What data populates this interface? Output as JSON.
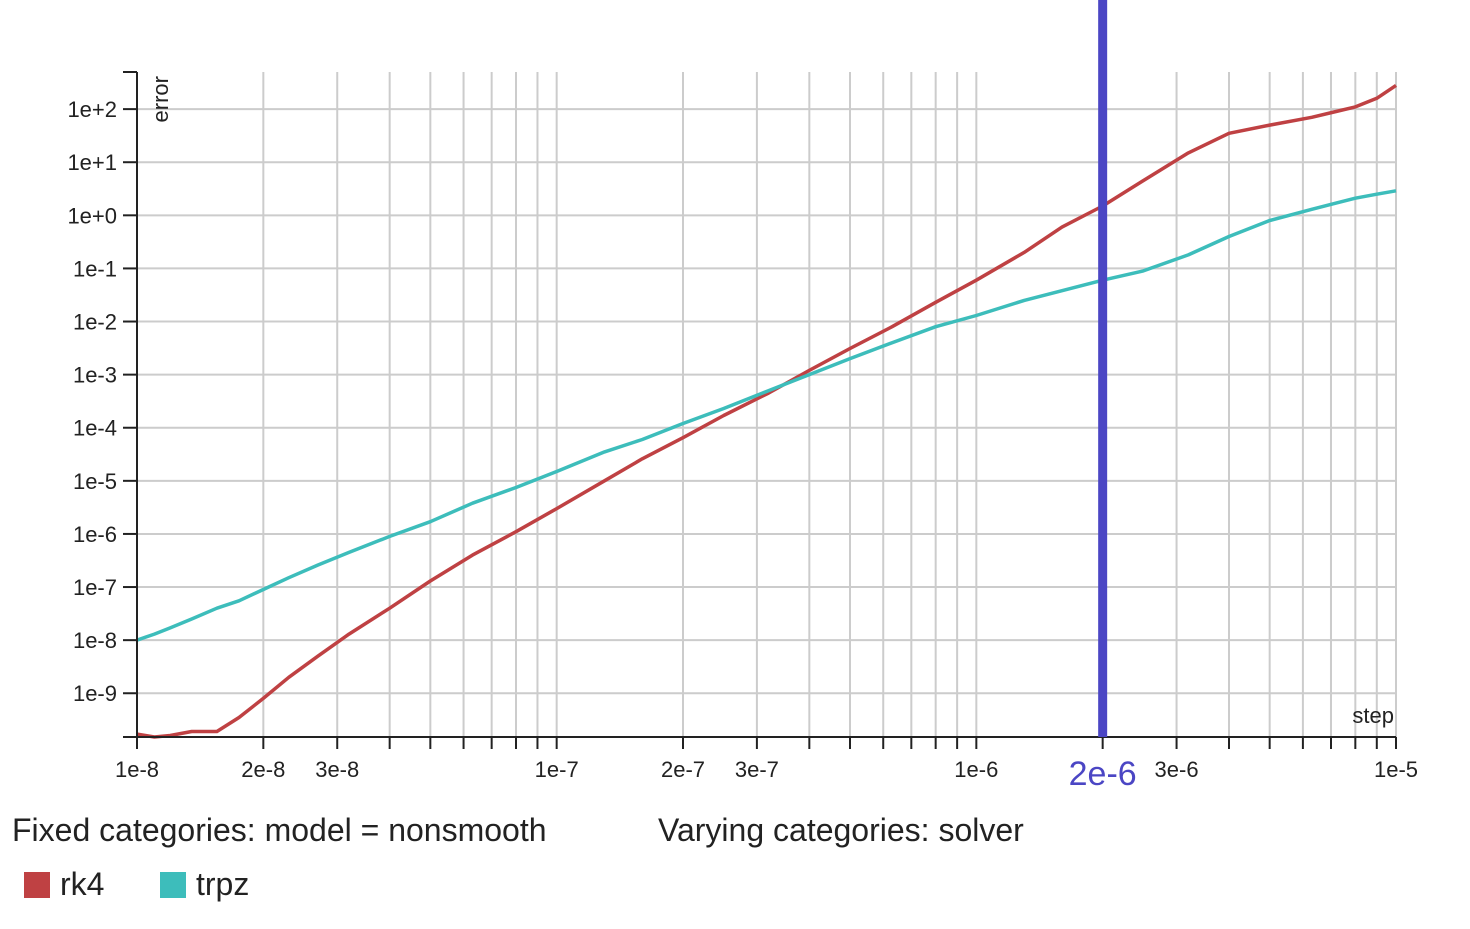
{
  "chart_data": {
    "type": "line",
    "x_scale": "log",
    "y_scale": "log",
    "xlabel": "step",
    "ylabel": "error",
    "xlim": [
      1e-08,
      1e-05
    ],
    "ylim": [
      1.5e-10,
      500
    ],
    "grid": true,
    "x_tick_labels": [
      {
        "value": 1e-08,
        "label": "1e-8"
      },
      {
        "value": 2e-08,
        "label": "2e-8"
      },
      {
        "value": 3e-08,
        "label": "3e-8"
      },
      {
        "value": 1e-07,
        "label": "1e-7"
      },
      {
        "value": 2e-07,
        "label": "2e-7"
      },
      {
        "value": 3e-07,
        "label": "3e-7"
      },
      {
        "value": 1e-06,
        "label": "1e-6"
      },
      {
        "value": 3e-06,
        "label": "3e-6"
      },
      {
        "value": 1e-05,
        "label": "1e-5"
      }
    ],
    "y_tick_labels": [
      {
        "value": 100,
        "label": "1e+2"
      },
      {
        "value": 10,
        "label": "1e+1"
      },
      {
        "value": 1,
        "label": "1e+0"
      },
      {
        "value": 0.1,
        "label": "1e-1"
      },
      {
        "value": 0.01,
        "label": "1e-2"
      },
      {
        "value": 0.001,
        "label": "1e-3"
      },
      {
        "value": 0.0001,
        "label": "1e-4"
      },
      {
        "value": 1e-05,
        "label": "1e-5"
      },
      {
        "value": 1e-06,
        "label": "1e-6"
      },
      {
        "value": 1e-07,
        "label": "1e-7"
      },
      {
        "value": 1e-08,
        "label": "1e-8"
      },
      {
        "value": 1e-09,
        "label": "1e-9"
      }
    ],
    "marker": {
      "x": 2e-06,
      "label": "2e-6",
      "color": "#4b46c4"
    },
    "series": [
      {
        "name": "rk4",
        "color": "#bf4143",
        "x": [
          1e-08,
          1.1e-08,
          1.2e-08,
          1.35e-08,
          1.55e-08,
          1.75e-08,
          2e-08,
          2.3e-08,
          2.7e-08,
          3.2e-08,
          4e-08,
          5e-08,
          6.3e-08,
          8e-08,
          1e-07,
          1.3e-07,
          1.6e-07,
          2e-07,
          2.5e-07,
          3.2e-07,
          4e-07,
          5e-07,
          6.3e-07,
          8e-07,
          1e-06,
          1.3e-06,
          1.6e-06,
          2e-06,
          2.5e-06,
          3.2e-06,
          4e-06,
          5e-06,
          6.3e-06,
          7.2e-06,
          8e-06,
          9e-06,
          1e-05
        ],
        "y": [
          1.7e-10,
          1.5e-10,
          1.6e-10,
          1.9e-10,
          1.9e-10,
          3.5e-10,
          8e-10,
          2e-09,
          5e-09,
          1.3e-08,
          4e-08,
          1.3e-07,
          4e-07,
          1.1e-06,
          3e-06,
          1e-05,
          2.6e-05,
          6.5e-05,
          0.00017,
          0.00045,
          0.0012,
          0.0031,
          0.008,
          0.023,
          0.06,
          0.2,
          0.6,
          1.5,
          4.5,
          15,
          35,
          50,
          70,
          90,
          110,
          160,
          280
        ]
      },
      {
        "name": "trpz",
        "color": "#3dbdbb",
        "x": [
          1e-08,
          1.1e-08,
          1.2e-08,
          1.35e-08,
          1.55e-08,
          1.75e-08,
          2e-08,
          2.3e-08,
          2.7e-08,
          3.2e-08,
          4e-08,
          5e-08,
          6.3e-08,
          8e-08,
          1e-07,
          1.3e-07,
          1.6e-07,
          2e-07,
          2.5e-07,
          3.2e-07,
          4e-07,
          5e-07,
          6.3e-07,
          8e-07,
          1e-06,
          1.3e-06,
          1.6e-06,
          2e-06,
          2.5e-06,
          3.2e-06,
          4e-06,
          5e-06,
          6.3e-06,
          7.2e-06,
          8e-06,
          9e-06,
          1e-05
        ],
        "y": [
          1e-08,
          1.3e-08,
          1.7e-08,
          2.5e-08,
          4e-08,
          5.5e-08,
          9e-08,
          1.5e-07,
          2.6e-07,
          4.5e-07,
          9e-07,
          1.7e-06,
          3.8e-06,
          7.5e-06,
          1.5e-05,
          3.5e-05,
          6e-05,
          0.00012,
          0.00023,
          0.0005,
          0.001,
          0.002,
          0.004,
          0.008,
          0.013,
          0.025,
          0.038,
          0.06,
          0.09,
          0.18,
          0.4,
          0.8,
          1.3,
          1.7,
          2.1,
          2.5,
          2.9
        ]
      }
    ]
  },
  "footer": {
    "fixed_label": "Fixed categories: model = nonsmooth",
    "varying_label": "Varying categories: solver"
  },
  "legend": [
    {
      "name": "rk4",
      "color": "#bf4143"
    },
    {
      "name": "trpz",
      "color": "#3dbdbb"
    }
  ]
}
